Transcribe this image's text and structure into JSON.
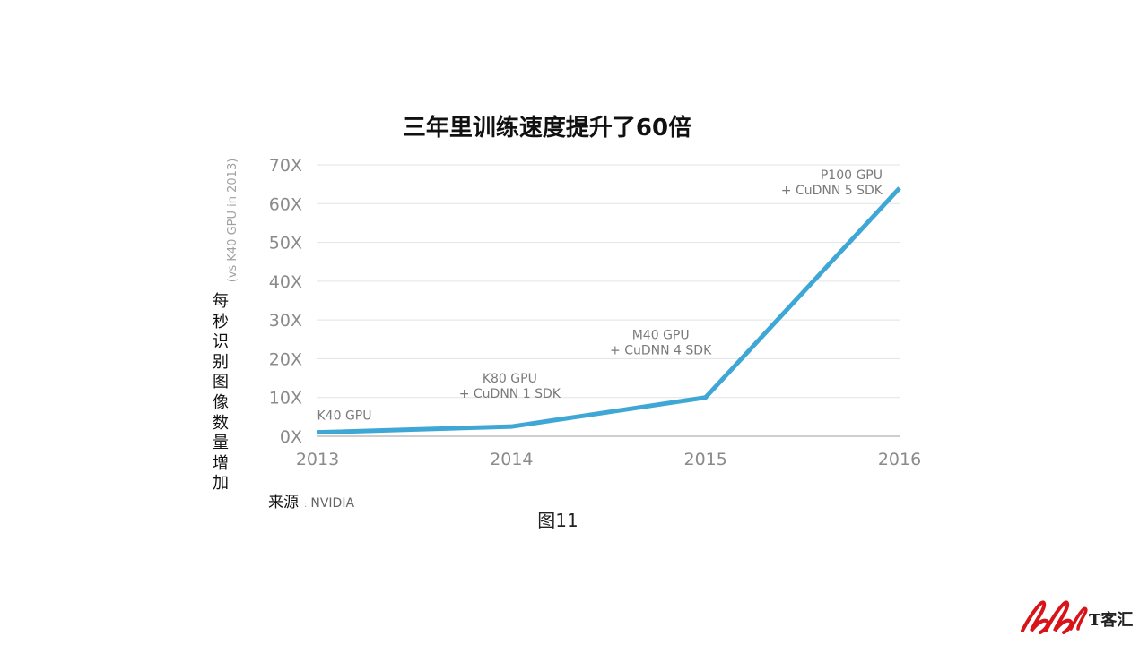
{
  "chart_data": {
    "type": "line",
    "title": "三年里训练速度提升了60倍",
    "ylabel": "(vs K40 GPU in 2013)",
    "ylabel_cn": "每秒识别图像数量增加",
    "x": [
      "2013",
      "2014",
      "2015",
      "2016"
    ],
    "y_ticks": [
      "0X",
      "10X",
      "20X",
      "30X",
      "40X",
      "50X",
      "60X",
      "70X"
    ],
    "ylim": [
      0,
      70
    ],
    "series": [
      {
        "values": [
          1,
          2.5,
          10,
          64
        ],
        "color": "#3fa7d6"
      }
    ],
    "annotations": [
      {
        "lines": [
          "K40 GPU"
        ]
      },
      {
        "lines": [
          "K80 GPU",
          "+ CuDNN 1 SDK"
        ]
      },
      {
        "lines": [
          "M40 GPU",
          "+ CuDNN 4 SDK"
        ]
      },
      {
        "lines": [
          "P100 GPU",
          "+ CuDNN 5 SDK"
        ]
      }
    ],
    "grid": true
  },
  "source": {
    "prefix": "来源",
    "separator": ":",
    "value": "NVIDIA"
  },
  "caption": "图11",
  "logo": {
    "text": "T客汇",
    "color": "#d7141a"
  }
}
